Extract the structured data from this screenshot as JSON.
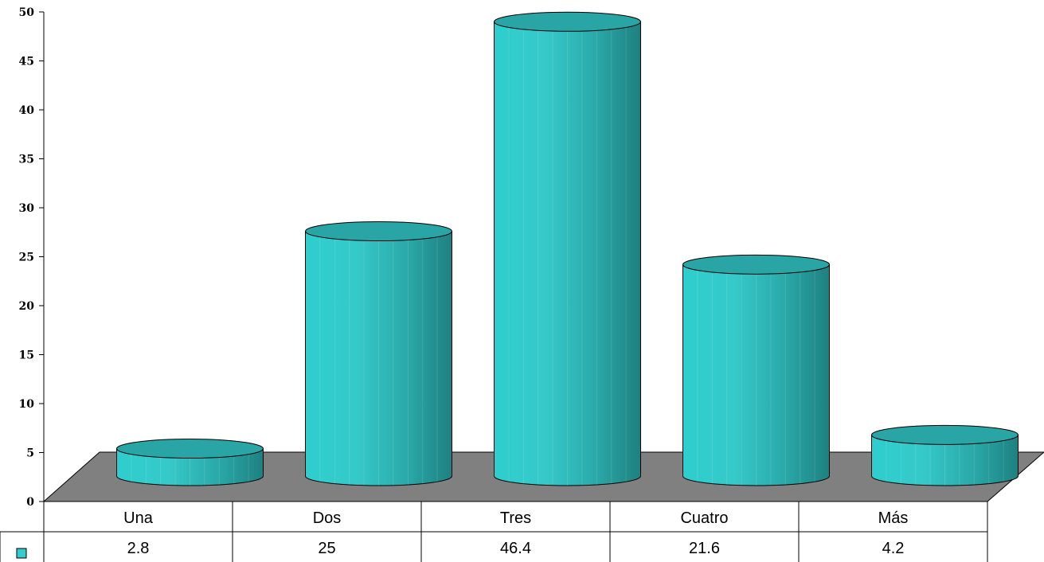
{
  "chart_data": {
    "type": "bar",
    "categories": [
      "Una",
      "Dos",
      "Tres",
      "Cuatro",
      "Más"
    ],
    "values": [
      2.8,
      25,
      46.4,
      21.6,
      4.2
    ],
    "value_labels": [
      "2.8",
      "25",
      "46.4",
      "21.6",
      "4.2"
    ],
    "ylim": [
      0,
      50
    ],
    "yticks": [
      0,
      5,
      10,
      15,
      20,
      25,
      30,
      35,
      40,
      45,
      50
    ],
    "grid": false,
    "legend": "data-table",
    "colors": {
      "bar": "#33CCCC",
      "bar_dark": "#1F7F7F",
      "top": "#2AA5A5",
      "floor": "#808080"
    }
  }
}
